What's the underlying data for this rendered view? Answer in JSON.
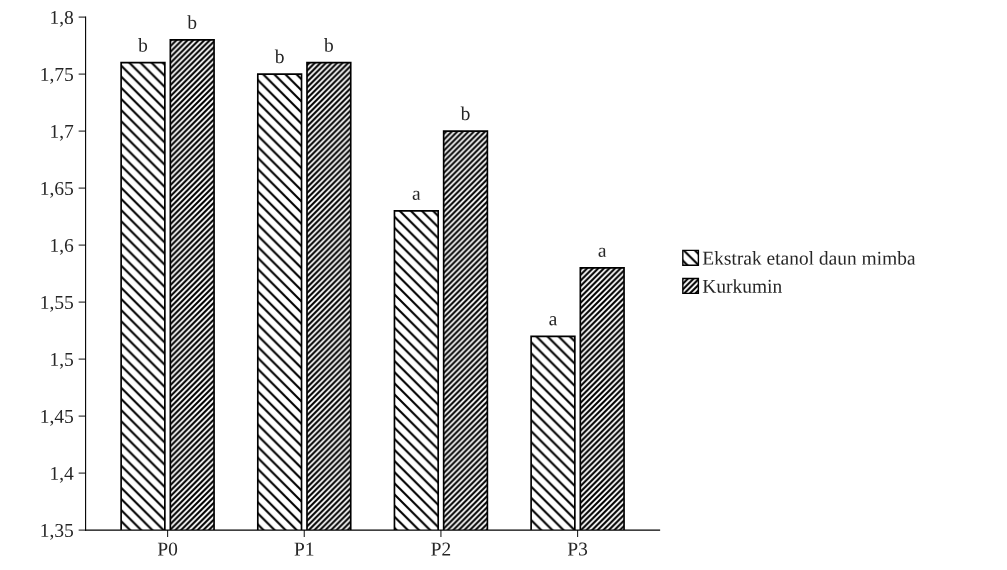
{
  "chart_data": {
    "type": "bar",
    "categories": [
      "P0",
      "P1",
      "P2",
      "P3"
    ],
    "series": [
      {
        "name": "Ekstrak etanol daun mimba",
        "color": "#000000",
        "values": [
          1.76,
          1.75,
          1.63,
          1.52
        ],
        "value_labels": [
          "b",
          "b",
          "a",
          "a"
        ]
      },
      {
        "name": "Kurkumin",
        "color": "#000000",
        "values": [
          1.78,
          1.76,
          1.7,
          1.58
        ],
        "value_labels": [
          "b",
          "b",
          "b",
          "a"
        ]
      }
    ],
    "ylim": [
      1.35,
      1.8
    ],
    "yticks": [
      {
        "value": 1.35,
        "label": "1,35"
      },
      {
        "value": 1.4,
        "label": "1,4"
      },
      {
        "value": 1.45,
        "label": "1,45"
      },
      {
        "value": 1.5,
        "label": "1,5"
      },
      {
        "value": 1.55,
        "label": "1,55"
      },
      {
        "value": 1.6,
        "label": "1,6"
      },
      {
        "value": 1.65,
        "label": "1,65"
      },
      {
        "value": 1.7,
        "label": "1,7"
      },
      {
        "value": 1.75,
        "label": "1,75"
      },
      {
        "value": 1.8,
        "label": "1,8"
      }
    ],
    "grid": false,
    "legend": "right"
  }
}
